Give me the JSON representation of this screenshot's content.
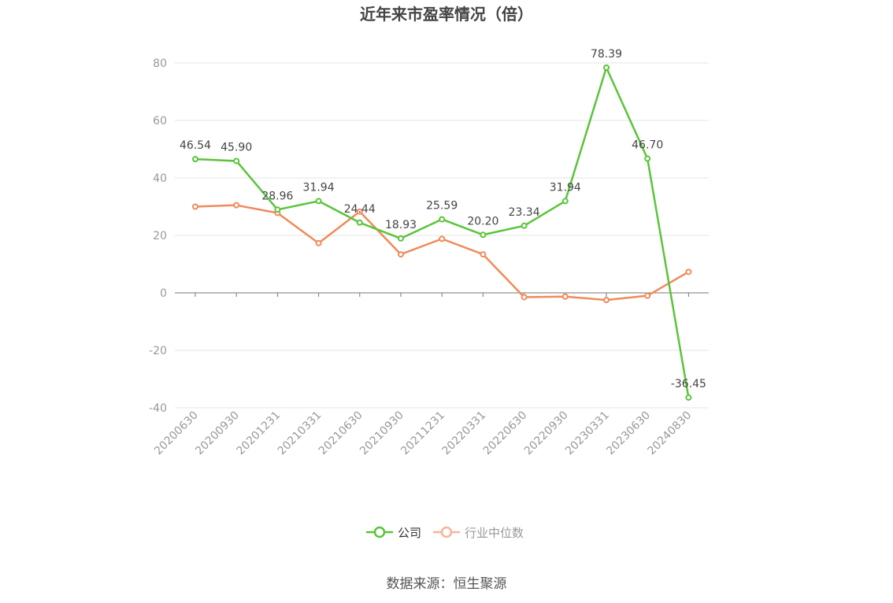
{
  "chart_data": {
    "type": "line",
    "title": "近年来市盈率情况（倍）",
    "xlabel": "",
    "ylabel": "",
    "categories": [
      "20200630",
      "20200930",
      "20201231",
      "20210331",
      "20210630",
      "20210930",
      "20211231",
      "20220331",
      "20220630",
      "20220930",
      "20230331",
      "20230630",
      "20240830"
    ],
    "ylim": [
      -40,
      80
    ],
    "yticks": [
      -40,
      -20,
      0,
      20,
      40,
      60,
      80
    ],
    "grid": true,
    "legend_position": "bottom-center",
    "series": [
      {
        "name": "公司",
        "color": "#5ac43a",
        "values": [
          46.54,
          45.9,
          28.96,
          31.94,
          24.44,
          18.93,
          25.59,
          20.2,
          23.34,
          31.94,
          78.39,
          46.7,
          -36.45
        ],
        "labels": [
          "46.54",
          "45.90",
          "28.96",
          "31.94",
          "24.44",
          "18.93",
          "25.59",
          "20.20",
          "23.34",
          "31.94",
          "78.39",
          "46.70",
          "-36.45"
        ],
        "show_labels": true
      },
      {
        "name": "行业中位数",
        "color": "#f08a5c",
        "values": [
          30.0,
          30.5,
          27.8,
          17.3,
          28.3,
          13.4,
          18.8,
          13.4,
          -1.5,
          -1.3,
          -2.5,
          -1.0,
          7.3
        ],
        "show_labels": false
      }
    ]
  },
  "footer": {
    "source": "数据来源：恒生聚源"
  }
}
